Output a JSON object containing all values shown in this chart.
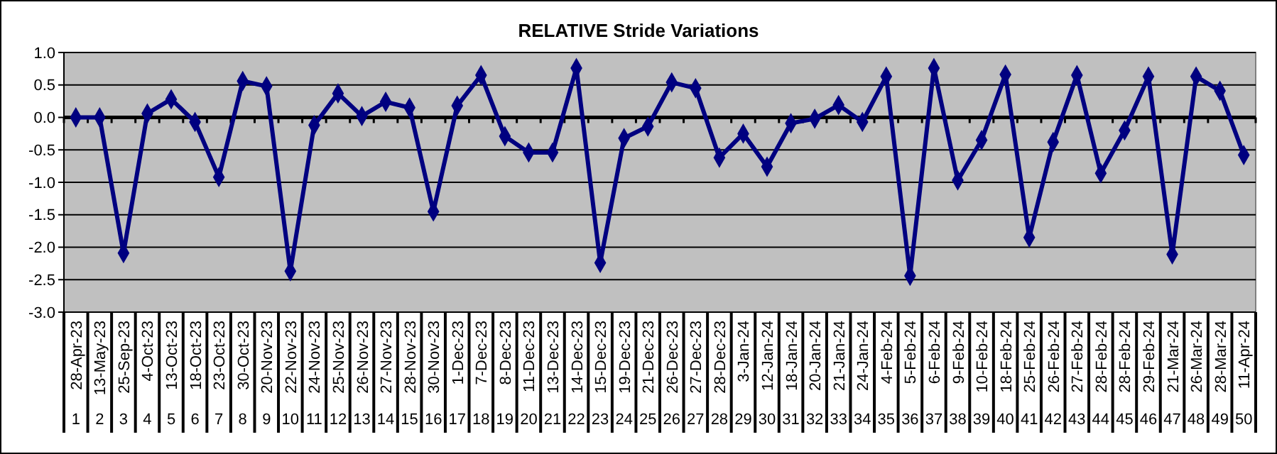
{
  "chart_data": {
    "type": "line",
    "title": "RELATIVE Stride Variations",
    "categories": [
      "28-Apr-23\n1",
      "13-May-23\n2",
      "25-Sep-23\n3",
      "4-Oct-23\n4",
      "13-Oct-23\n5",
      "18-Oct-23\n6",
      "23-Oct-23\n7",
      "30-Oct-23\n8",
      "20-Nov-23\n9",
      "22-Nov-23\n10",
      "24-Nov-23\n11",
      "25-Nov-23\n12",
      "26-Nov-23\n13",
      "27-Nov-23\n14",
      "28-Nov-23\n15",
      "30-Nov-23\n16",
      "1-Dec-23\n17",
      "7-Dec-23\n18",
      "8-Dec-23\n19",
      "11-Dec-23\n20",
      "13-Dec-23\n21",
      "14-Dec-23\n22",
      "15-Dec-23\n23",
      "19-Dec-23\n24",
      "21-Dec-23\n25",
      "26-Dec-23\n26",
      "27-Dec-23\n27",
      "28-Dec-23\n28",
      "3-Jan-24\n29",
      "12-Jan-24\n30",
      "18-Jan-24\n31",
      "20-Jan-24\n32",
      "21-Jan-24\n33",
      "24-Jan-24\n34",
      "4-Feb-24\n35",
      "5-Feb-24\n36",
      "6-Feb-24\n37",
      "9-Feb-24\n38",
      "10-Feb-24\n39",
      "18-Feb-24\n40",
      "25-Feb-24\n41",
      "26-Feb-24\n42",
      "27-Feb-24\n43",
      "28-Feb-24\n44",
      "28-Feb-24\n45",
      "29-Feb-24\n46",
      "21-Mar-24\n47",
      "26-Mar-24\n48",
      "28-Mar-24\n49",
      "11-Apr-24\n50"
    ],
    "series": [
      {
        "color": "#000080",
        "values": [
          0,
          0,
          -2.09,
          0.06,
          0.28,
          -0.07,
          -0.92,
          0.56,
          0.48,
          -2.37,
          -0.12,
          0.37,
          0.02,
          0.24,
          0.15,
          -1.45,
          0.18,
          0.65,
          -0.29,
          -0.54,
          -0.54,
          0.76,
          -2.24,
          -0.32,
          -0.14,
          0.54,
          0.45,
          -0.62,
          -0.25,
          -0.76,
          -0.09,
          -0.02,
          0.19,
          -0.07,
          0.63,
          -2.44,
          0.76,
          -0.97,
          -0.35,
          0.66,
          -1.85,
          -0.38,
          0.65,
          -0.86,
          -0.2,
          0.63,
          -2.11,
          0.63,
          0.41,
          -0.58
        ]
      }
    ],
    "ylim": [
      -3,
      1
    ],
    "yticks": [
      {
        "value": 1,
        "label": "1.0"
      },
      {
        "value": 0.5,
        "label": "0.5"
      },
      {
        "value": 0,
        "label": "0.0"
      },
      {
        "value": -0.5,
        "label": "-0.5"
      },
      {
        "value": -1,
        "label": "-1.0"
      },
      {
        "value": -1.5,
        "label": "-1.5"
      },
      {
        "value": -2,
        "label": "-2.0"
      },
      {
        "value": -2.5,
        "label": "-2.5"
      },
      {
        "value": -3,
        "label": "-3.0"
      }
    ],
    "grid": "y",
    "marker": "diamond",
    "line_style": "solid"
  }
}
